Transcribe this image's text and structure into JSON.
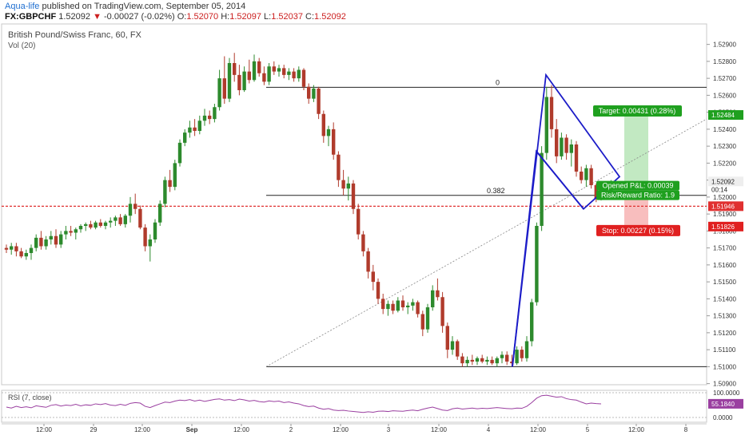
{
  "header": {
    "author": "Aqua-life",
    "published": "published on TradingView.com, September 05, 2014",
    "symbol": "FX:GBPCHF",
    "last": "1.52092",
    "arrow": "▼",
    "change": "-0.00027 (-0.02%)",
    "open_label": "O:",
    "open": "1.52070",
    "high_label": "H:",
    "high": "1.52097",
    "low_label": "L:",
    "low": "1.52037",
    "close_label": "C:",
    "close": "1.52092"
  },
  "chart_data": {
    "type": "candlestick",
    "title": "British Pound/Swiss Franc, 60, FX",
    "subtitle": "Vol (20)",
    "y_ticks": [
      "1.52900",
      "1.52800",
      "1.52700",
      "1.52600",
      "1.52500",
      "1.52400",
      "1.52300",
      "1.52200",
      "1.52100",
      "1.52000",
      "1.51900",
      "1.51800",
      "1.51700",
      "1.51600",
      "1.51500",
      "1.51400",
      "1.51300",
      "1.51200",
      "1.51100",
      "1.51000",
      "1.50900"
    ],
    "ylim": [
      1.5087,
      1.5295
    ],
    "x_ticks": [
      "12:00",
      "29",
      "12:00",
      "Sep",
      "12:00",
      "2",
      "12:00",
      "3",
      "12:00",
      "4",
      "12:00",
      "5",
      "12:00",
      "8"
    ],
    "price_labels": {
      "current": "1.52092",
      "countdown": "00:14",
      "target": "1.52484",
      "level": "1.51946",
      "stop": "1.51826"
    },
    "colors": {
      "up": "#2d8a2d",
      "down": "#b03b2c",
      "pattern": "#1c1cc8",
      "target_bg": "#a8e0a8",
      "stop_bg": "#f5a3a3",
      "ref_line": "#e03030",
      "target_label": "#1fa01f",
      "stop_label": "#e02020"
    },
    "candles": [
      [
        1.517,
        1.5172,
        1.5167,
        1.5169
      ],
      [
        1.5169,
        1.5173,
        1.5166,
        1.5171
      ],
      [
        1.5171,
        1.5173,
        1.5165,
        1.5168
      ],
      [
        1.5168,
        1.517,
        1.5164,
        1.5165
      ],
      [
        1.5165,
        1.5169,
        1.5163,
        1.5167
      ],
      [
        1.5167,
        1.5172,
        1.5163,
        1.517
      ],
      [
        1.517,
        1.5178,
        1.5168,
        1.5176
      ],
      [
        1.5176,
        1.518,
        1.5169,
        1.5171
      ],
      [
        1.5171,
        1.5177,
        1.5169,
        1.5175
      ],
      [
        1.5175,
        1.518,
        1.5172,
        1.5177
      ],
      [
        1.5177,
        1.5181,
        1.517,
        1.5172
      ],
      [
        1.5172,
        1.518,
        1.517,
        1.5178
      ],
      [
        1.5178,
        1.5183,
        1.5175,
        1.518
      ],
      [
        1.518,
        1.5183,
        1.5177,
        1.5179
      ],
      [
        1.5179,
        1.5182,
        1.5175,
        1.5181
      ],
      [
        1.5181,
        1.5184,
        1.5179,
        1.5183
      ],
      [
        1.5183,
        1.5185,
        1.518,
        1.5184
      ],
      [
        1.5184,
        1.5186,
        1.5181,
        1.5182
      ],
      [
        1.5182,
        1.5186,
        1.5181,
        1.5185
      ],
      [
        1.5185,
        1.5187,
        1.5182,
        1.5183
      ],
      [
        1.5183,
        1.5186,
        1.5181,
        1.5185
      ],
      [
        1.5185,
        1.5188,
        1.5182,
        1.5186
      ],
      [
        1.5186,
        1.5189,
        1.5183,
        1.5188
      ],
      [
        1.5188,
        1.519,
        1.5183,
        1.5184
      ],
      [
        1.5184,
        1.519,
        1.5182,
        1.5189
      ],
      [
        1.5189,
        1.52,
        1.5185,
        1.5196
      ],
      [
        1.5196,
        1.5202,
        1.519,
        1.5193
      ],
      [
        1.5193,
        1.5195,
        1.5181,
        1.5182
      ],
      [
        1.5182,
        1.5184,
        1.5168,
        1.5171
      ],
      [
        1.5171,
        1.5178,
        1.5162,
        1.5175
      ],
      [
        1.5175,
        1.5187,
        1.5173,
        1.5185
      ],
      [
        1.5185,
        1.5198,
        1.5183,
        1.5196
      ],
      [
        1.5196,
        1.5212,
        1.5194,
        1.521
      ],
      [
        1.521,
        1.5216,
        1.5203,
        1.5206
      ],
      [
        1.5206,
        1.5222,
        1.5204,
        1.522
      ],
      [
        1.522,
        1.5234,
        1.5218,
        1.5232
      ],
      [
        1.5232,
        1.524,
        1.523,
        1.5238
      ],
      [
        1.5238,
        1.5245,
        1.5235,
        1.5241
      ],
      [
        1.5241,
        1.5246,
        1.5236,
        1.5239
      ],
      [
        1.5239,
        1.5248,
        1.5237,
        1.5245
      ],
      [
        1.5245,
        1.5252,
        1.5242,
        1.5248
      ],
      [
        1.5248,
        1.5251,
        1.5243,
        1.5246
      ],
      [
        1.5246,
        1.5255,
        1.5244,
        1.5253
      ],
      [
        1.5253,
        1.5275,
        1.5251,
        1.527
      ],
      [
        1.527,
        1.5283,
        1.5255,
        1.5258
      ],
      [
        1.5258,
        1.5282,
        1.5256,
        1.5279
      ],
      [
        1.5279,
        1.5285,
        1.5268,
        1.5272
      ],
      [
        1.5272,
        1.5278,
        1.526,
        1.5263
      ],
      [
        1.5263,
        1.5277,
        1.5262,
        1.5274
      ],
      [
        1.5274,
        1.5281,
        1.5267,
        1.5269
      ],
      [
        1.5269,
        1.5284,
        1.5268,
        1.528
      ],
      [
        1.528,
        1.5282,
        1.5271,
        1.5273
      ],
      [
        1.5273,
        1.5277,
        1.5266,
        1.5268
      ],
      [
        1.5268,
        1.5279,
        1.5266,
        1.5277
      ],
      [
        1.5277,
        1.528,
        1.5272,
        1.5274
      ],
      [
        1.5274,
        1.5278,
        1.5271,
        1.5276
      ],
      [
        1.5276,
        1.5278,
        1.527,
        1.5272
      ],
      [
        1.5272,
        1.5276,
        1.5269,
        1.5274
      ],
      [
        1.5274,
        1.5276,
        1.5268,
        1.527
      ],
      [
        1.527,
        1.5277,
        1.5268,
        1.5275
      ],
      [
        1.5275,
        1.5276,
        1.5263,
        1.5265
      ],
      [
        1.5265,
        1.5267,
        1.5255,
        1.5258
      ],
      [
        1.5258,
        1.5266,
        1.5256,
        1.5264
      ],
      [
        1.5264,
        1.5265,
        1.5246,
        1.5249
      ],
      [
        1.5249,
        1.5251,
        1.5232,
        1.5236
      ],
      [
        1.5236,
        1.5242,
        1.523,
        1.524
      ],
      [
        1.524,
        1.5244,
        1.5222,
        1.5225
      ],
      [
        1.5225,
        1.5227,
        1.5206,
        1.521
      ],
      [
        1.521,
        1.5216,
        1.5201,
        1.5205
      ],
      [
        1.5205,
        1.5212,
        1.5198,
        1.5208
      ],
      [
        1.5208,
        1.521,
        1.519,
        1.5193
      ],
      [
        1.5193,
        1.5196,
        1.5175,
        1.5178
      ],
      [
        1.5178,
        1.518,
        1.5165,
        1.5168
      ],
      [
        1.5168,
        1.517,
        1.5152,
        1.5156
      ],
      [
        1.5156,
        1.516,
        1.5145,
        1.515
      ],
      [
        1.515,
        1.5152,
        1.5137,
        1.514
      ],
      [
        1.514,
        1.5143,
        1.5131,
        1.5134
      ],
      [
        1.5134,
        1.5139,
        1.513,
        1.5137
      ],
      [
        1.5137,
        1.5139,
        1.5131,
        1.5133
      ],
      [
        1.5133,
        1.5141,
        1.5132,
        1.5139
      ],
      [
        1.5139,
        1.5142,
        1.5133,
        1.5135
      ],
      [
        1.5135,
        1.5138,
        1.5131,
        1.5136
      ],
      [
        1.5136,
        1.514,
        1.5133,
        1.5138
      ],
      [
        1.5138,
        1.5139,
        1.5129,
        1.5131
      ],
      [
        1.5131,
        1.5133,
        1.5118,
        1.5122
      ],
      [
        1.5122,
        1.5137,
        1.512,
        1.5135
      ],
      [
        1.5135,
        1.5148,
        1.5133,
        1.5145
      ],
      [
        1.5145,
        1.5152,
        1.5139,
        1.5141
      ],
      [
        1.5141,
        1.5144,
        1.512,
        1.5124
      ],
      [
        1.5124,
        1.5126,
        1.5105,
        1.511
      ],
      [
        1.511,
        1.5118,
        1.5107,
        1.5115
      ],
      [
        1.5115,
        1.5116,
        1.5104,
        1.5106
      ],
      [
        1.5106,
        1.5108,
        1.51,
        1.5102
      ],
      [
        1.5102,
        1.5106,
        1.51,
        1.5104
      ],
      [
        1.5104,
        1.5107,
        1.5101,
        1.5103
      ],
      [
        1.5103,
        1.5106,
        1.5101,
        1.5105
      ],
      [
        1.5105,
        1.5107,
        1.5102,
        1.5103
      ],
      [
        1.5103,
        1.5106,
        1.5101,
        1.5104
      ],
      [
        1.5104,
        1.5106,
        1.5101,
        1.5102
      ],
      [
        1.5102,
        1.5106,
        1.51,
        1.5105
      ],
      [
        1.5105,
        1.5109,
        1.5102,
        1.5107
      ],
      [
        1.5107,
        1.5109,
        1.5101,
        1.5103
      ],
      [
        1.5103,
        1.5107,
        1.51,
        1.5102
      ],
      [
        1.5102,
        1.5112,
        1.5101,
        1.511
      ],
      [
        1.511,
        1.5112,
        1.5103,
        1.5105
      ],
      [
        1.5105,
        1.5118,
        1.5103,
        1.5115
      ],
      [
        1.5115,
        1.514,
        1.5112,
        1.5138
      ],
      [
        1.5138,
        1.5185,
        1.5136,
        1.5183
      ],
      [
        1.5183,
        1.523,
        1.518,
        1.5226
      ],
      [
        1.5226,
        1.5265,
        1.5222,
        1.5259
      ],
      [
        1.5259,
        1.5266,
        1.5235,
        1.524
      ],
      [
        1.524,
        1.5246,
        1.522,
        1.5224
      ],
      [
        1.5224,
        1.5238,
        1.5222,
        1.5235
      ],
      [
        1.5235,
        1.5237,
        1.5222,
        1.5226
      ],
      [
        1.5226,
        1.5234,
        1.5218,
        1.5231
      ],
      [
        1.5231,
        1.5233,
        1.5212,
        1.5215
      ],
      [
        1.5215,
        1.5218,
        1.5208,
        1.521
      ],
      [
        1.521,
        1.5219,
        1.5206,
        1.5217
      ],
      [
        1.5217,
        1.5219,
        1.5205,
        1.5207
      ],
      [
        1.5207,
        1.5208,
        1.5197,
        1.5199
      ],
      [
        1.5199,
        1.5206,
        1.5198,
        1.5204
      ],
      [
        1.5204,
        1.5207,
        1.5201,
        1.5203
      ],
      [
        1.5203,
        1.521,
        1.5202,
        1.5209
      ]
    ],
    "annotations": [
      {
        "type": "fib-level",
        "label": "0",
        "price": 1.52647
      },
      {
        "type": "fib-level",
        "label": "0.382",
        "price": 1.5201
      },
      {
        "type": "fib-level",
        "label": "",
        "price": 1.51
      }
    ],
    "position": {
      "target_text": "Target: 0.00431 (0.28%)",
      "pnl_text": "Opened P&L: 0.00039",
      "rr_text": "Risk/Reward Ratio: 1.9",
      "stop_text": "Stop: 0.00227 (0.15%)",
      "entry": 1.52053,
      "target": 1.52484,
      "stop": 1.51826
    },
    "rsi": {
      "label": "RSI (7, close)",
      "ticks": [
        "100.0000",
        "55.1840",
        "0.0000"
      ],
      "last": 55.184,
      "values": [
        42,
        38,
        45,
        40,
        43,
        39,
        47,
        44,
        41,
        49,
        52,
        46,
        50,
        48,
        53,
        47,
        51,
        49,
        55,
        52,
        56,
        50,
        48,
        53,
        49,
        57,
        60,
        58,
        45,
        40,
        48,
        55,
        62,
        60,
        66,
        70,
        68,
        72,
        66,
        70,
        65,
        69,
        73,
        75,
        70,
        72,
        68,
        74,
        71,
        66,
        69,
        64,
        62,
        67,
        64,
        66,
        60,
        63,
        58,
        55,
        48,
        44,
        46,
        38,
        33,
        36,
        30,
        28,
        29,
        26,
        24,
        22,
        20,
        23,
        21,
        25,
        26,
        24,
        27,
        26,
        25,
        28,
        30,
        27,
        33,
        38,
        42,
        36,
        30,
        28,
        35,
        38,
        34,
        36,
        38,
        35,
        37,
        36,
        38,
        40,
        38,
        36,
        35,
        38,
        37,
        45,
        60,
        78,
        88,
        90,
        86,
        82,
        84,
        76,
        72,
        70,
        62,
        55,
        58,
        56,
        55
      ]
    }
  }
}
